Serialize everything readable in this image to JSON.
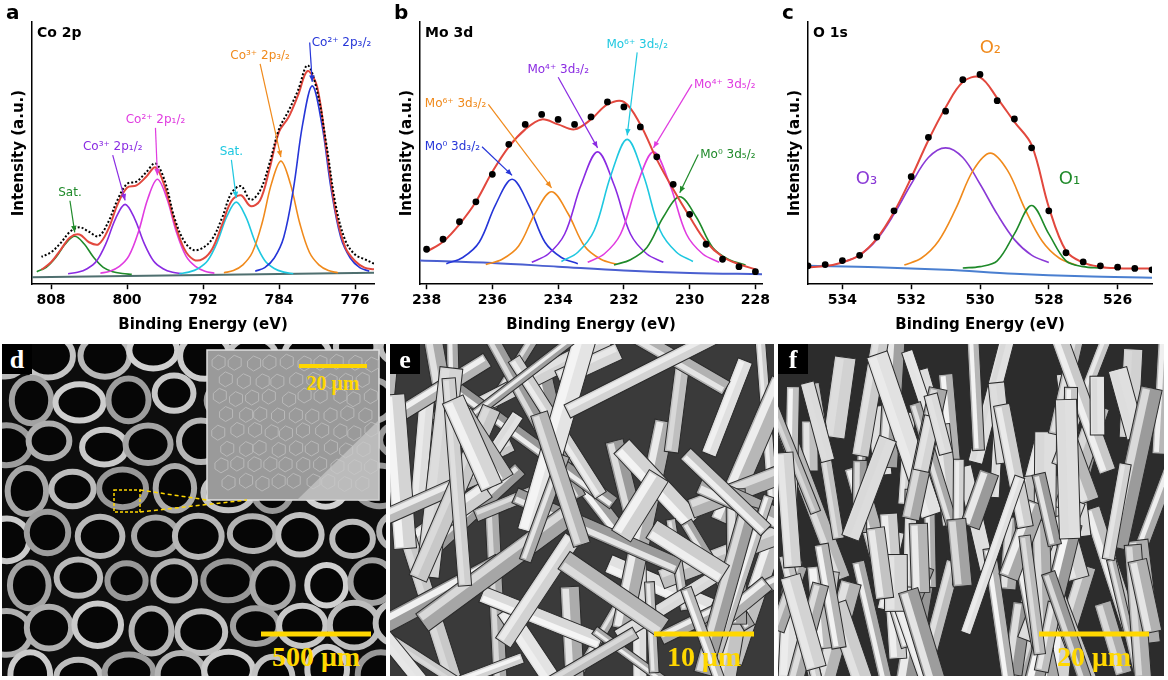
{
  "chart_data": [
    {
      "type": "line",
      "panel": "a",
      "title": "Co 2p",
      "x_label": "Binding Energy (eV)",
      "y_label": "Intensity (a.u.)",
      "xlim": [
        810,
        774
      ],
      "xticks": [
        808,
        800,
        792,
        784,
        776
      ],
      "ylim": [
        0,
        115
      ],
      "tick_labels": "x",
      "grid": false,
      "series": [
        {
          "color": "#4f6f6f",
          "x": [
            810,
            774
          ],
          "values": [
            3,
            5
          ]
        },
        {
          "name": "Sat.",
          "color": "#1f8a2a",
          "x": [
            799.5,
            800.5,
            801.5,
            802.5,
            803.5,
            804.5,
            805.5,
            806.5,
            807.5,
            808.5,
            809.5
          ],
          "values": [
            4.3,
            4.7,
            5.5,
            7.4,
            11.7,
            17.6,
            21,
            17.6,
            11.7,
            7.4,
            5.5
          ]
        },
        {
          "name": "Co³⁺ 2p₁/₂",
          "color": "#8a2be2",
          "x": [
            794.2,
            795.2,
            796.2,
            797.2,
            798.2,
            799.2,
            800.2,
            801.2,
            802.2,
            803.2,
            804.2,
            805.2,
            806.2
          ],
          "values": [
            4.6,
            5.2,
            6.8,
            10.2,
            18,
            28.8,
            35,
            28.8,
            18,
            10.2,
            6.8,
            5.2,
            4.6
          ]
        },
        {
          "name": "Co²⁺ 2p₁/₂",
          "color": "#e03ce0",
          "x": [
            790.8,
            791.8,
            792.8,
            793.8,
            794.8,
            795.8,
            796.8,
            797.8,
            798.8,
            799.8,
            800.8,
            801.8,
            802.8
          ],
          "values": [
            4.8,
            5.7,
            7.8,
            12.4,
            22.9,
            37.6,
            46,
            37.6,
            22.9,
            12.4,
            7.8,
            5.7,
            4.8
          ]
        },
        {
          "name": "Sat.",
          "color": "#1fc8e0",
          "x": [
            782.5,
            783.5,
            784.5,
            785.5,
            786.5,
            787.5,
            788.5,
            789.5,
            790.5,
            791.5,
            792.5,
            793.5,
            794.5
          ],
          "values": [
            4.6,
            5.3,
            6.9,
            10.4,
            18.4,
            29.6,
            36,
            29.6,
            18.4,
            10.4,
            6.9,
            5.3,
            4.6
          ]
        },
        {
          "name": "Co³⁺ 2p₃/₂",
          "color": "#f08a1c",
          "x": [
            777.8,
            778.8,
            779.8,
            780.8,
            781.8,
            782.8,
            783.8,
            784.8,
            785.8,
            786.8,
            787.8,
            788.8,
            789.8
          ],
          "values": [
            5,
            6,
            8.5,
            14,
            26.5,
            44,
            54,
            44,
            26.5,
            14,
            8.5,
            6,
            5
          ]
        },
        {
          "name": "Co²⁺ 2p₃/₂",
          "color": "#2636d8",
          "x": [
            774.5,
            775.5,
            776.5,
            777.5,
            778.5,
            779.5,
            780.5,
            781.5,
            782.5,
            783.5,
            784.5,
            785.5,
            786.5
          ],
          "values": [
            5.7,
            7.3,
            11.5,
            20.6,
            41.4,
            70.4,
            87,
            70.4,
            41.4,
            20.6,
            11.5,
            7.3,
            5.7
          ]
        },
        {
          "color": "#e2483e",
          "x": [
            774,
            775,
            776,
            777,
            778,
            779,
            780,
            781,
            782,
            783,
            784,
            785,
            786,
            787,
            788,
            789,
            790,
            791,
            792,
            793,
            794,
            795,
            796,
            797,
            798,
            799,
            800,
            801,
            802,
            803,
            804,
            805,
            806,
            807,
            808,
            809
          ],
          "values": [
            6.5,
            7.3,
            10.2,
            15.9,
            31.2,
            59.1,
            86.8,
            93.5,
            82.8,
            73.2,
            66.8,
            50.5,
            36.7,
            34.3,
            39,
            36.5,
            26,
            15.7,
            11.1,
            10.8,
            15.7,
            27.4,
            42.5,
            51.2,
            47,
            43.3,
            42.3,
            34.9,
            23.8,
            17.5,
            18.4,
            21.8,
            20.5,
            15,
            9.6,
            6.4
          ]
        },
        {
          "color": "#000000",
          "line_style": "dotted",
          "x": [
            774,
            775,
            776,
            777,
            778,
            779,
            780,
            781,
            782,
            783,
            784,
            785,
            786,
            787,
            788,
            789,
            790,
            791,
            792,
            793,
            794,
            795,
            796,
            797,
            798,
            799,
            800,
            801,
            802,
            803,
            804,
            805,
            806,
            807,
            808,
            809
          ],
          "values": [
            9,
            11,
            13,
            19,
            34,
            61,
            85,
            96,
            85,
            76,
            68,
            53,
            41,
            37,
            43,
            40,
            29,
            20,
            16,
            15,
            19,
            29,
            45,
            53,
            49,
            45,
            44,
            37,
            27,
            21,
            23,
            25,
            23,
            18,
            14,
            12
          ]
        }
      ]
    },
    {
      "type": "line",
      "panel": "b",
      "title": "Mo 3d",
      "x_label": "Binding Energy (eV)",
      "y_label": "Intensity (a.u.)",
      "xlim": [
        238.2,
        227.8
      ],
      "xticks": [
        238,
        236,
        234,
        232,
        230,
        228
      ],
      "ylim": [
        0,
        105
      ],
      "tick_labels": "x",
      "grid": false,
      "series": [
        {
          "color": "#4a5fd0",
          "x": [
            238.2,
            236,
            234,
            232,
            230,
            227.8
          ],
          "values": [
            9.5,
            8.5,
            7,
            5.5,
            4.5,
            4
          ]
        },
        {
          "name": "Mo⁰ 3d₃/₂",
          "color": "#2636d8",
          "x": [
            233.4,
            233.9,
            234.4,
            234.9,
            235.4,
            235.9,
            236.4,
            236.9,
            237.4
          ],
          "values": [
            8.2,
            10.7,
            16.8,
            31.9,
            42,
            31.9,
            16.8,
            10.7,
            8.2
          ]
        },
        {
          "name": "Mo⁶⁺ 3d₃/₂",
          "color": "#f08a1c",
          "x": [
            232.2,
            232.7,
            233.2,
            233.7,
            234.2,
            234.7,
            235.2,
            235.7,
            236.2
          ],
          "values": [
            7.9,
            10,
            15.3,
            28.3,
            37,
            28.3,
            15.3,
            10,
            7.9
          ]
        },
        {
          "name": "Mo⁴⁺ 3d₃/₂",
          "color": "#8a2be2",
          "x": [
            230.8,
            231.3,
            231.8,
            232.3,
            232.8,
            233.3,
            233.8,
            234.3,
            234.8
          ],
          "values": [
            8.8,
            12.1,
            20.1,
            39.8,
            53,
            39.8,
            20.1,
            12.1,
            8.8
          ]
        },
        {
          "name": "Mo⁶⁺ 3d₅/₂",
          "color": "#1fc8e0",
          "x": [
            229.9,
            230.4,
            230.9,
            231.4,
            231.9,
            232.4,
            232.9,
            233.4,
            233.9
          ],
          "values": [
            9.1,
            12.8,
            21.6,
            43.4,
            58,
            43.4,
            21.6,
            12.8,
            9.1
          ]
        },
        {
          "name": "Mo⁴⁺ 3d₅/₂",
          "color": "#e03ce0",
          "x": [
            229.1,
            229.6,
            230.1,
            230.6,
            231.1,
            231.6,
            232.1,
            232.6,
            233.1
          ],
          "values": [
            8.8,
            12.1,
            20.1,
            39.8,
            53,
            39.8,
            20.1,
            12.1,
            8.8
          ]
        },
        {
          "name": "Mo⁰ 3d₅/₂",
          "color": "#1f8a2a",
          "x": [
            228.3,
            228.8,
            229.3,
            229.8,
            230.3,
            230.8,
            231.3,
            231.8,
            232.3
          ],
          "values": [
            7.7,
            9.8,
            14.7,
            26.9,
            35,
            26.9,
            14.7,
            9.8,
            7.7
          ]
        },
        {
          "color": "#e2483e",
          "x": [
            228,
            228.5,
            229,
            229.5,
            230,
            230.5,
            231,
            231.5,
            232,
            232.5,
            233,
            233.5,
            234,
            234.5,
            235,
            235.5,
            236,
            236.5,
            237,
            237.5,
            238
          ],
          "values": [
            6,
            8,
            11,
            17,
            27,
            38,
            50,
            64,
            73,
            72,
            66,
            62,
            64,
            66,
            62,
            55,
            45,
            33,
            24,
            17,
            13
          ]
        },
        {
          "color": "#000000",
          "marker": "circle",
          "line_style": "none",
          "x": [
            228,
            228.5,
            229,
            229.5,
            230,
            230.5,
            231,
            231.5,
            232,
            232.5,
            233,
            233.5,
            234,
            234.5,
            235,
            235.5,
            236,
            236.5,
            237,
            237.5,
            238
          ],
          "values": [
            5,
            7,
            10,
            16,
            28,
            40,
            51,
            63,
            71,
            73,
            67,
            64,
            66,
            68,
            64,
            56,
            44,
            33,
            25,
            18,
            14
          ]
        }
      ]
    },
    {
      "type": "line",
      "panel": "c",
      "title": "O 1s",
      "x_label": "Binding Energy (eV)",
      "y_label": "Intensity (a.u.)",
      "xlim": [
        535,
        525
      ],
      "xticks": [
        534,
        532,
        530,
        528,
        526
      ],
      "ylim": [
        0,
        100
      ],
      "tick_labels": "x",
      "grid": false,
      "series": [
        {
          "color": "#4a7fd0",
          "x": [
            535,
            533,
            531,
            529,
            527,
            525
          ],
          "values": [
            7,
            6.5,
            5.5,
            4,
            3,
            2.5
          ]
        },
        {
          "name": "O₃",
          "color": "#8a3ad6",
          "x": [
            528,
            528.5,
            529,
            529.5,
            530,
            530.5,
            531,
            531.5,
            532,
            532.5,
            533,
            533.5,
            534
          ],
          "values": [
            8.3,
            11.1,
            17,
            26.7,
            38.2,
            48.3,
            52,
            48.3,
            38.2,
            26.7,
            17,
            11.1,
            8.3
          ]
        },
        {
          "name": "O₂",
          "color": "#f08a1c",
          "x": [
            527.2,
            527.7,
            528.2,
            528.7,
            529.2,
            529.7,
            530.2,
            530.7,
            531.2,
            531.7,
            532.2
          ],
          "values": [
            7.3,
            10,
            16.6,
            28.9,
            43.4,
            50,
            43.4,
            28.9,
            16.6,
            10,
            7.3
          ]
        },
        {
          "name": "O₁",
          "color": "#1f8a2a",
          "x": [
            526.5,
            527,
            527.5,
            528,
            528.5,
            529,
            529.5,
            530,
            530.5
          ],
          "values": [
            6.2,
            6.7,
            8.9,
            19.2,
            30,
            19.2,
            8.9,
            6.7,
            6.2
          ]
        },
        {
          "color": "#e2483e",
          "x": [
            525,
            525.5,
            526,
            526.5,
            527,
            527.5,
            528,
            528.5,
            529,
            529.5,
            530,
            530.5,
            531,
            531.5,
            532,
            532.5,
            533,
            533.5,
            534,
            534.5,
            535
          ],
          "values": [
            6,
            6,
            6.1,
            6.6,
            8.2,
            12.7,
            29.4,
            53.1,
            61.9,
            71,
            78.9,
            77.1,
            67.4,
            54.9,
            40.6,
            27.5,
            17.4,
            11.1,
            8.3,
            6.9,
            6.5
          ]
        },
        {
          "color": "#000000",
          "marker": "circle",
          "line_style": "none",
          "x": [
            525,
            525.5,
            526,
            526.5,
            527,
            527.5,
            528,
            528.5,
            529,
            529.5,
            530,
            530.5,
            531,
            531.5,
            532,
            532.5,
            533,
            533.5,
            534,
            534.5,
            535
          ],
          "values": [
            5.5,
            6,
            6.5,
            7,
            8.5,
            12,
            28,
            52,
            63,
            70,
            80,
            78,
            66,
            56,
            41,
            28,
            18,
            11,
            9,
            7.5,
            7
          ]
        }
      ]
    }
  ],
  "images": [
    {
      "panel": "d",
      "scale_bar": "500 μm",
      "inset_scale_bar": "20 μm"
    },
    {
      "panel": "e",
      "scale_bar": "10 μm"
    },
    {
      "panel": "f",
      "scale_bar": "20 μm"
    }
  ]
}
